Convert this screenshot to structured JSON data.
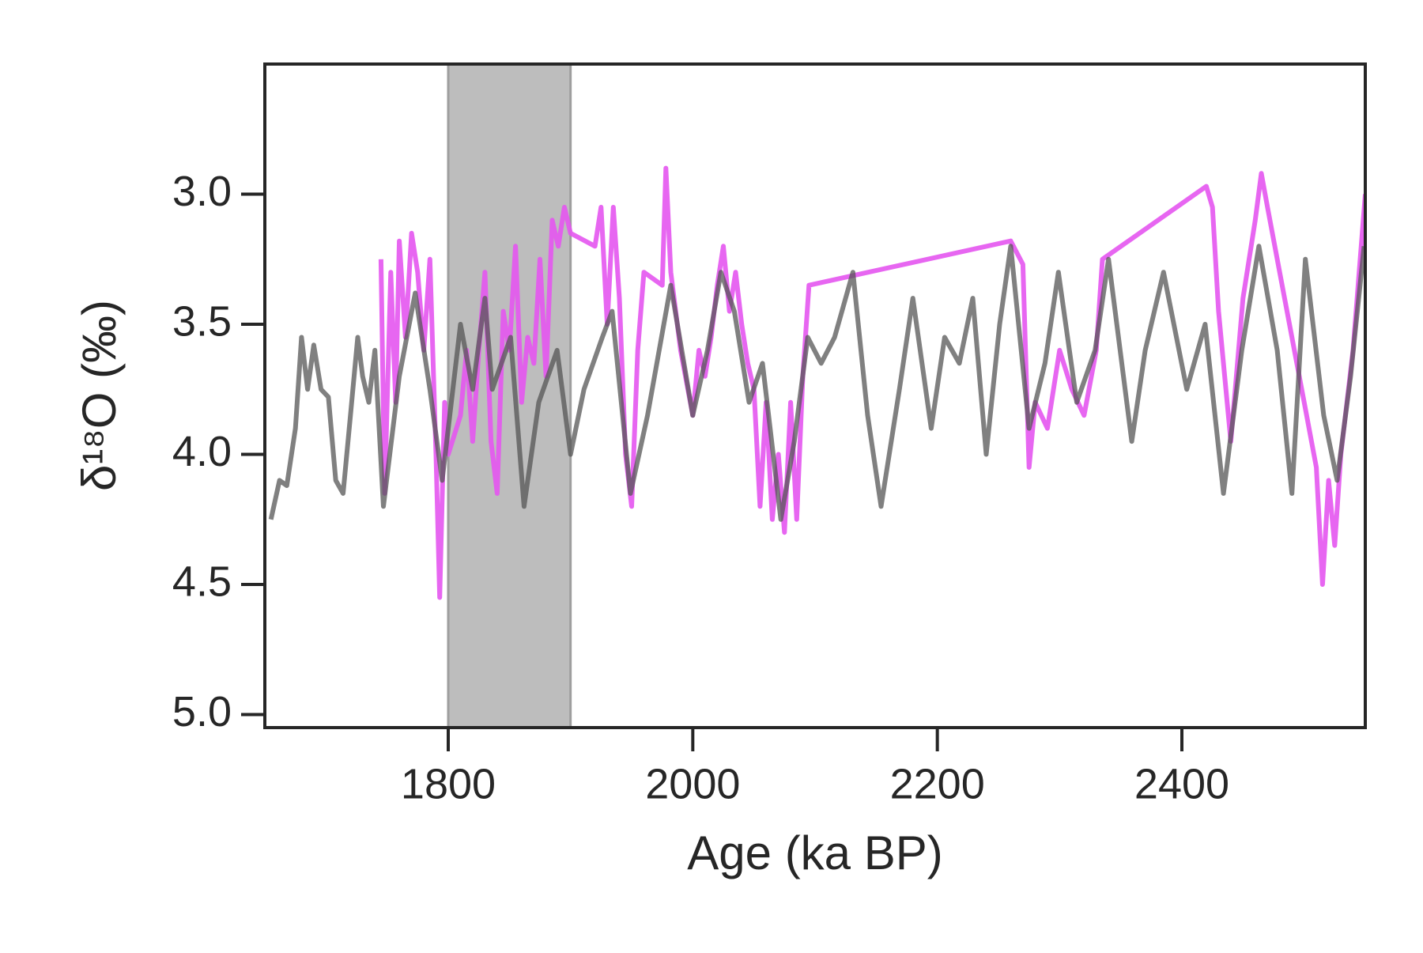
{
  "chart_data": {
    "type": "line",
    "x_label": "Age (ka BP)",
    "y_label": "δ¹⁸O (‰)",
    "xlim": [
      1650,
      2550
    ],
    "ylim": [
      2.5,
      5.05
    ],
    "y_inverted": true,
    "xticks": [
      1800,
      2000,
      2200,
      2400
    ],
    "yticks": [
      {
        "value": 3.0,
        "label": "3.0"
      },
      3.5,
      {
        "value": 4.0,
        "label": "4.0"
      },
      4.5,
      {
        "value": 5.0,
        "label": "5.0"
      }
    ],
    "shaded_region": {
      "xlim": [
        1800,
        1900
      ],
      "color": "#bdbdbd",
      "edge_color": "#9e9e9e"
    },
    "series": [
      {
        "color": "#e455f0",
        "x": [
          1745,
          1748,
          1753,
          1757,
          1760,
          1765,
          1770,
          1775,
          1780,
          1785,
          1790,
          1793,
          1797,
          1800,
          1810,
          1815,
          1820,
          1825,
          1830,
          1835,
          1840,
          1845,
          1850,
          1855,
          1860,
          1865,
          1870,
          1875,
          1880,
          1885,
          1890,
          1895,
          1900,
          1920,
          1925,
          1930,
          1935,
          1940,
          1945,
          1950,
          1955,
          1960,
          1975,
          1978,
          1982,
          1990,
          2000,
          2005,
          2010,
          2015,
          2020,
          2025,
          2030,
          2035,
          2040,
          2045,
          2050,
          2055,
          2060,
          2065,
          2070,
          2075,
          2080,
          2085,
          2090,
          2095,
          2260,
          2270,
          2275,
          2280,
          2290,
          2300,
          2310,
          2320,
          2330,
          2335,
          2420,
          2425,
          2430,
          2440,
          2450,
          2460,
          2465,
          2470,
          2480,
          2500,
          2510,
          2515,
          2520,
          2525,
          2530,
          2540,
          2550
        ],
        "values": [
          3.25,
          4.15,
          3.3,
          3.8,
          3.18,
          3.55,
          3.15,
          3.3,
          3.6,
          3.25,
          4.0,
          4.55,
          3.8,
          4.0,
          3.85,
          3.6,
          3.95,
          3.6,
          3.3,
          3.95,
          4.15,
          3.45,
          3.6,
          3.2,
          3.8,
          3.55,
          3.65,
          3.25,
          3.7,
          3.1,
          3.2,
          3.05,
          3.15,
          3.2,
          3.05,
          3.5,
          3.05,
          3.4,
          4.0,
          4.2,
          3.6,
          3.3,
          3.35,
          2.9,
          3.3,
          3.6,
          3.85,
          3.6,
          3.7,
          3.55,
          3.35,
          3.2,
          3.45,
          3.3,
          3.5,
          3.65,
          3.75,
          4.2,
          3.8,
          4.25,
          4.0,
          4.3,
          3.8,
          4.25,
          3.7,
          3.35,
          3.18,
          3.27,
          4.05,
          3.8,
          3.9,
          3.6,
          3.75,
          3.85,
          3.6,
          3.25,
          2.97,
          3.05,
          3.45,
          3.95,
          3.4,
          3.1,
          2.92,
          3.05,
          3.3,
          3.8,
          4.05,
          4.5,
          4.1,
          4.35,
          4.0,
          3.6,
          3.0
        ]
      },
      {
        "color": "#555555",
        "x": [
          1655,
          1662,
          1668,
          1675,
          1680,
          1685,
          1690,
          1696,
          1702,
          1708,
          1714,
          1720,
          1726,
          1730,
          1735,
          1740,
          1747,
          1760,
          1773,
          1785,
          1795,
          1810,
          1820,
          1830,
          1836,
          1851,
          1862,
          1874,
          1889,
          1900,
          1911,
          1926,
          1934,
          1949,
          1963,
          1982,
          2000,
          2012,
          2023,
          2034,
          2046,
          2057,
          2072,
          2083,
          2094,
          2105,
          2116,
          2131,
          2143,
          2154,
          2169,
          2180,
          2195,
          2206,
          2218,
          2229,
          2240,
          2251,
          2260,
          2275,
          2288,
          2299,
          2314,
          2329,
          2340,
          2359,
          2370,
          2385,
          2404,
          2419,
          2434,
          2449,
          2463,
          2478,
          2490,
          2501,
          2516,
          2527,
          2538,
          2549
        ],
        "values": [
          4.25,
          4.1,
          4.12,
          3.9,
          3.55,
          3.75,
          3.58,
          3.75,
          3.78,
          4.1,
          4.15,
          3.85,
          3.55,
          3.7,
          3.8,
          3.6,
          4.2,
          3.7,
          3.38,
          3.75,
          4.1,
          3.5,
          3.75,
          3.4,
          3.75,
          3.55,
          4.2,
          3.8,
          3.6,
          4.0,
          3.75,
          3.55,
          3.45,
          4.15,
          3.85,
          3.35,
          3.85,
          3.6,
          3.3,
          3.45,
          3.8,
          3.65,
          4.25,
          3.95,
          3.55,
          3.65,
          3.55,
          3.3,
          3.85,
          4.2,
          3.75,
          3.4,
          3.9,
          3.55,
          3.65,
          3.4,
          4.0,
          3.5,
          3.2,
          3.9,
          3.65,
          3.3,
          3.8,
          3.6,
          3.25,
          3.95,
          3.6,
          3.3,
          3.75,
          3.5,
          4.15,
          3.6,
          3.2,
          3.6,
          4.15,
          3.25,
          3.85,
          4.1,
          3.7,
          3.2
        ]
      }
    ]
  }
}
